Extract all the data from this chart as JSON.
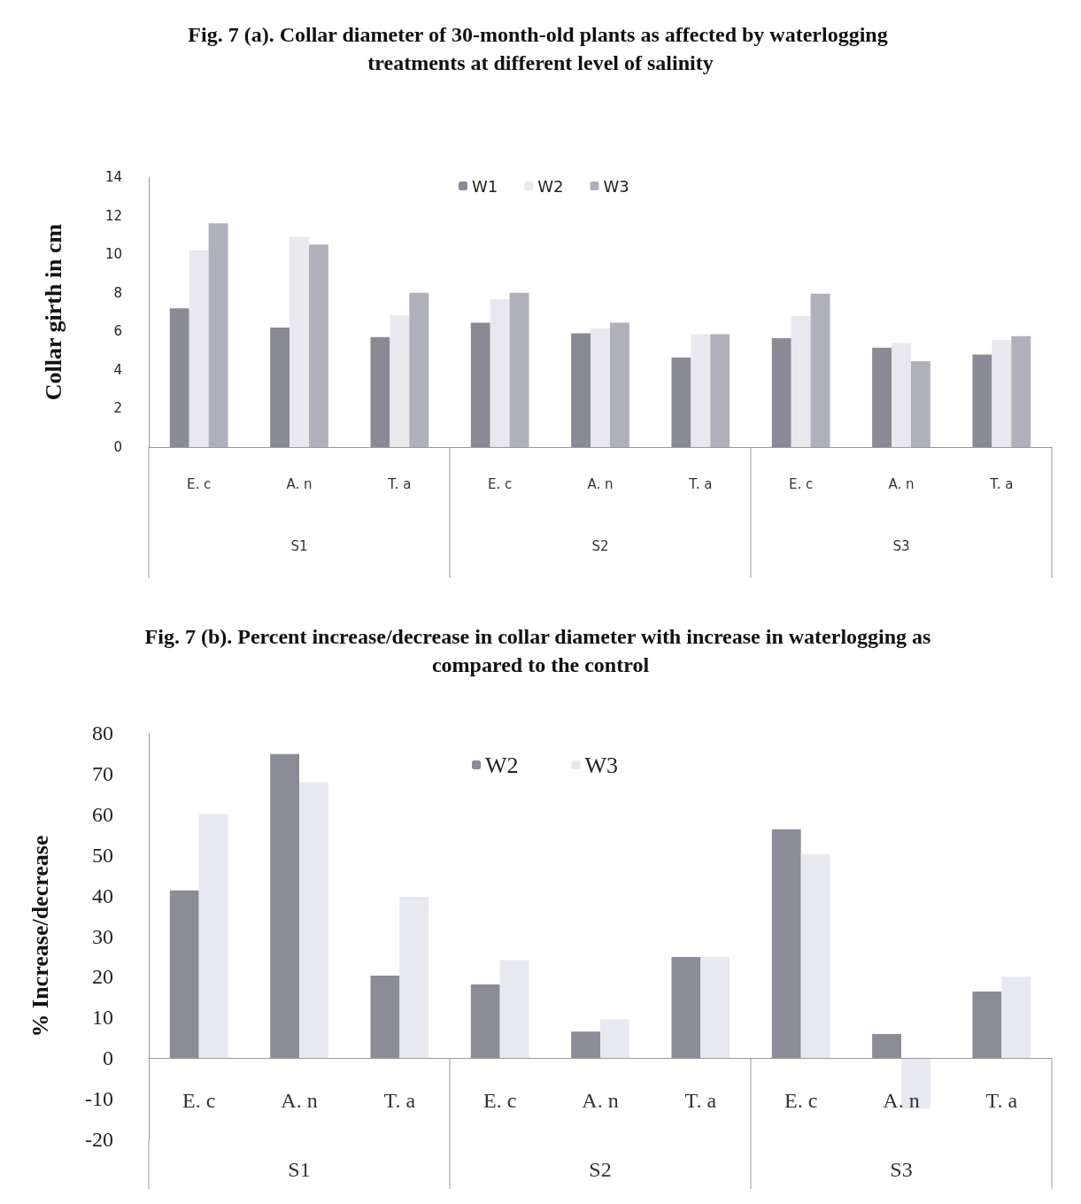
{
  "chart_data": [
    {
      "type": "bar",
      "title": "Fig. 7 (a). Collar diameter of 30-month-old plants as affected by waterlogging treatments at different level of salinity",
      "ylabel": "Collar girth in cm",
      "categories": [
        "E. c",
        "A. n",
        "T. a",
        "E. c",
        "A. n",
        "T. a",
        "E. c",
        "A. n",
        "T. a"
      ],
      "annotations": [
        "S1",
        "S2",
        "S3"
      ],
      "series": [
        {
          "name": "W1",
          "color": "#8a8a96",
          "values": [
            7.2,
            6.2,
            5.7,
            6.45,
            5.9,
            4.65,
            5.65,
            5.15,
            4.8
          ]
        },
        {
          "name": "W2",
          "color": "#e8e8ee",
          "values": [
            10.2,
            10.9,
            6.85,
            7.65,
            6.15,
            5.85,
            6.8,
            5.4,
            5.55
          ]
        },
        {
          "name": "W3",
          "color": "#b0b0bc",
          "values": [
            11.6,
            10.5,
            8.0,
            8.0,
            6.45,
            5.85,
            7.95,
            4.45,
            5.75
          ]
        }
      ],
      "ylim": [
        0,
        14
      ],
      "yticks": [
        0,
        2,
        4,
        6,
        8,
        10,
        12,
        14
      ],
      "grid": false,
      "legend": "top"
    },
    {
      "type": "bar",
      "title": "Fig. 7 (b). Percent increase/decrease in collar diameter with increase in waterlogging as compared to the control",
      "ylabel": "% Increase/decrease",
      "categories": [
        "E. c",
        "A. n",
        "T. a",
        "E. c",
        "A. n",
        "T. a",
        "E. c",
        "A. n",
        "T. a"
      ],
      "annotations": [
        "S1",
        "S2",
        "S3"
      ],
      "series": [
        {
          "name": "W2",
          "color": "#8c8c98",
          "values": [
            41.3,
            74.8,
            20.3,
            18.1,
            6.5,
            24.9,
            56.3,
            5.9,
            16.4
          ]
        },
        {
          "name": "W3",
          "color": "#e8e8f0",
          "values": [
            60.1,
            67.9,
            39.7,
            24.1,
            9.5,
            24.9,
            50.2,
            -12.5,
            20
          ]
        }
      ],
      "ylim": [
        -20,
        80
      ],
      "yticks": [
        -20,
        -10,
        0,
        10,
        20,
        30,
        40,
        50,
        60,
        70,
        80
      ],
      "grid": false,
      "legend": "top"
    }
  ]
}
